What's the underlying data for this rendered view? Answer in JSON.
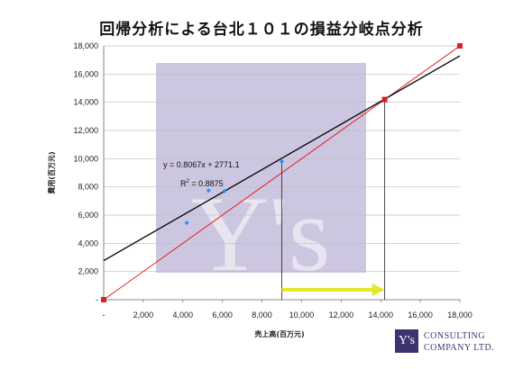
{
  "title": "回帰分析による台北１０１の損益分岐点分析",
  "brand": {
    "logo_mark": "Y's",
    "line1": "CONSULTING",
    "line2": "COMPANY LTD.",
    "box_color": "#3c3470"
  },
  "chart_data": {
    "type": "scatter",
    "xlabel": "売上高(百万元)",
    "ylabel": "費用(百万元)",
    "xlim": [
      0,
      18000
    ],
    "ylim": [
      0,
      18000
    ],
    "x_ticks": [
      "-",
      "2,000",
      "4,000",
      "6,000",
      "8,000",
      "10,000",
      "12,000",
      "14,000",
      "16,000",
      "18,000"
    ],
    "y_ticks": [
      "-",
      "2,000",
      "4,000",
      "6,000",
      "8,000",
      "10,000",
      "12,000",
      "14,000",
      "16,000",
      "18,000"
    ],
    "grid": "horizontal",
    "points": [
      {
        "x": 4200,
        "y": 5450
      },
      {
        "x": 5300,
        "y": 7750
      },
      {
        "x": 6100,
        "y": 7700
      },
      {
        "x": 9000,
        "y": 9800
      }
    ],
    "point_color": "#1e90ff",
    "regression": {
      "slope": 0.8067,
      "intercept": 2771.1,
      "color": "#000000"
    },
    "sales_line": {
      "from": [
        0,
        0
      ],
      "to": [
        18000,
        18000
      ],
      "color": "#e02020"
    },
    "break_even": {
      "x": 14200,
      "y": 14200
    },
    "current_sales_x": 9000,
    "arrow": {
      "from_x": 9000,
      "to_x": 14200,
      "y": 700,
      "color": "#e6e62a"
    },
    "equation": "y = 0.8067x + 2771.1",
    "r2": "= 0.8875",
    "r2_label": "R",
    "r2_sup": "2",
    "watermark": {
      "big": "Y's",
      "line1": "CONSULTING",
      "line2": "COMPANY LTD.",
      "color": "#cdc6e0"
    }
  }
}
